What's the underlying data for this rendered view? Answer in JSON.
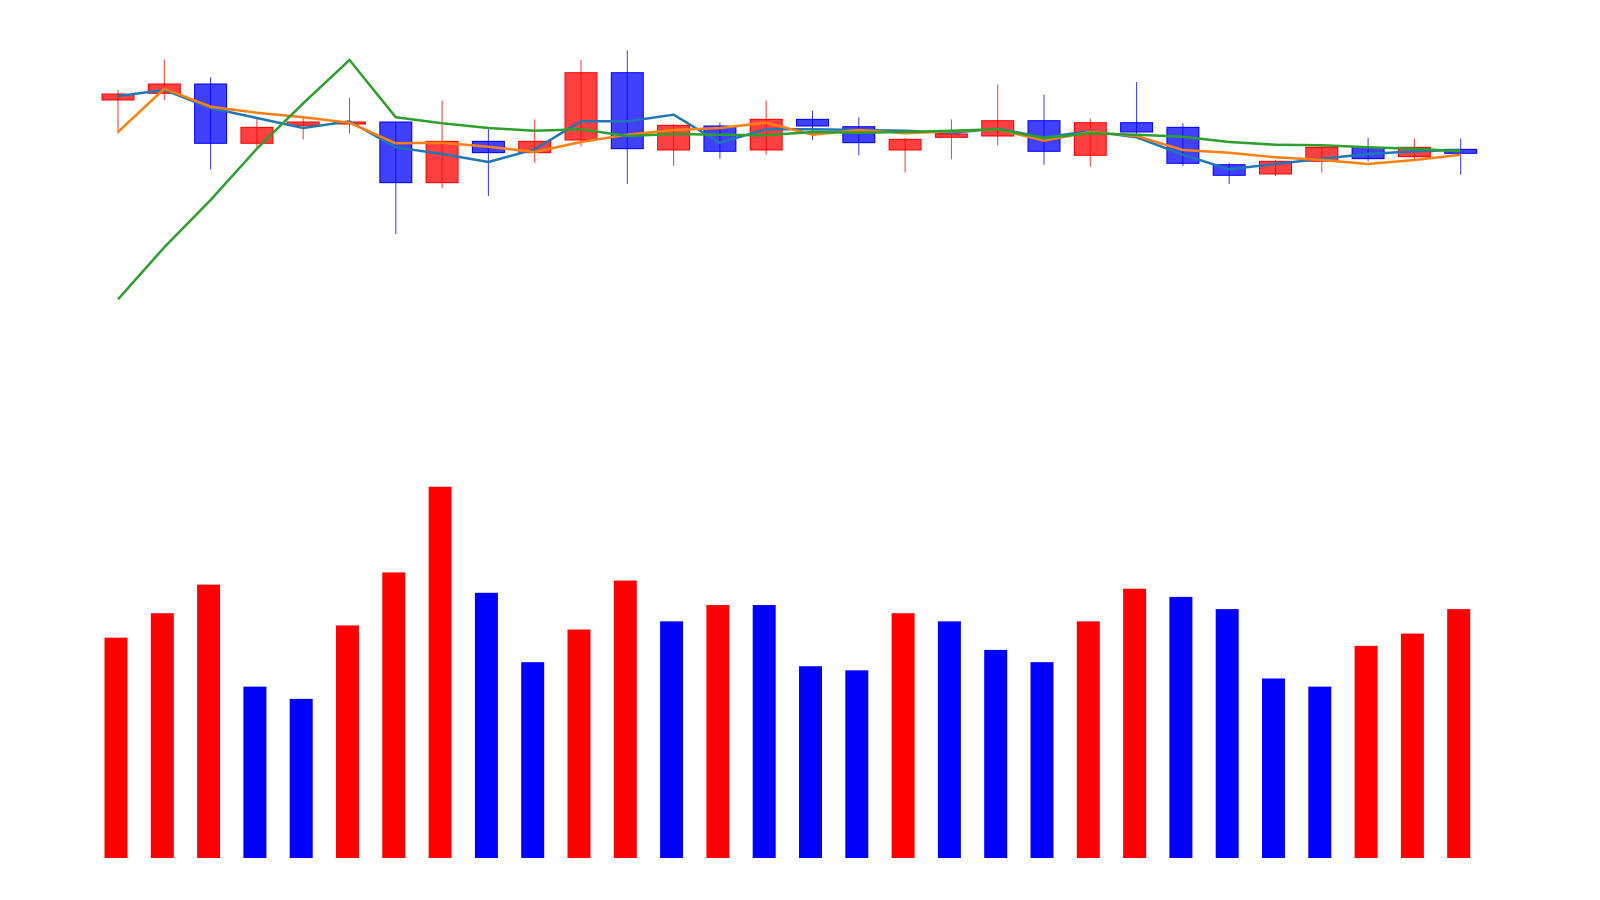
{
  "chart_data": [
    {
      "type": "candlestick",
      "title": "",
      "xlabel": "",
      "ylabel": "",
      "ylim": [
        0,
        72
      ],
      "grid": false,
      "legend": "none",
      "colors": {
        "up": "#ff0000",
        "down": "#0000ff",
        "line_a": "#1f77b4",
        "line_b": "#ff7f0e",
        "line_c": "#2ca02c"
      },
      "candles": [
        {
          "open": 60.0,
          "close": 60.9,
          "high": 61.5,
          "low": 55.0
        },
        {
          "open": 61.0,
          "close": 62.4,
          "high": 66.1,
          "low": 60.0
        },
        {
          "open": 62.4,
          "close": 53.5,
          "high": 63.4,
          "low": 49.6
        },
        {
          "open": 53.5,
          "close": 55.9,
          "high": 57.2,
          "low": 52.5
        },
        {
          "open": 56.2,
          "close": 56.7,
          "high": 57.4,
          "low": 54.1
        },
        {
          "open": 56.4,
          "close": 56.7,
          "high": 60.3,
          "low": 55.0
        },
        {
          "open": 56.7,
          "close": 47.6,
          "high": 56.7,
          "low": 39.9
        },
        {
          "open": 47.6,
          "close": 53.8,
          "high": 59.9,
          "low": 46.8
        },
        {
          "open": 53.8,
          "close": 52.1,
          "high": 55.6,
          "low": 45.6
        },
        {
          "open": 52.1,
          "close": 53.8,
          "high": 57.1,
          "low": 50.6
        },
        {
          "open": 54.0,
          "close": 64.1,
          "high": 66.0,
          "low": 53.1
        },
        {
          "open": 64.1,
          "close": 52.7,
          "high": 67.4,
          "low": 47.4
        },
        {
          "open": 52.5,
          "close": 56.2,
          "high": 56.4,
          "low": 50.1
        },
        {
          "open": 56.1,
          "close": 52.3,
          "high": 56.6,
          "low": 51.2
        },
        {
          "open": 52.5,
          "close": 57.1,
          "high": 59.9,
          "low": 51.8
        },
        {
          "open": 57.1,
          "close": 56.1,
          "high": 58.4,
          "low": 54.0
        },
        {
          "open": 56.0,
          "close": 53.6,
          "high": 57.4,
          "low": 51.7
        },
        {
          "open": 52.5,
          "close": 54.1,
          "high": 54.3,
          "low": 49.1
        },
        {
          "open": 54.4,
          "close": 54.9,
          "high": 57.1,
          "low": 51.1
        },
        {
          "open": 54.6,
          "close": 56.9,
          "high": 62.3,
          "low": 53.2
        },
        {
          "open": 56.9,
          "close": 52.3,
          "high": 60.8,
          "low": 50.3
        },
        {
          "open": 51.7,
          "close": 56.6,
          "high": 57.2,
          "low": 50.0
        },
        {
          "open": 56.6,
          "close": 55.2,
          "high": 62.7,
          "low": 54.3
        },
        {
          "open": 55.9,
          "close": 50.5,
          "high": 56.5,
          "low": 50.1
        },
        {
          "open": 50.3,
          "close": 48.7,
          "high": 50.6,
          "low": 47.4
        },
        {
          "open": 48.9,
          "close": 50.8,
          "high": 51.0,
          "low": 48.6
        },
        {
          "open": 50.8,
          "close": 52.9,
          "high": 53.0,
          "low": 49.1
        },
        {
          "open": 52.9,
          "close": 51.2,
          "high": 54.3,
          "low": 50.8
        },
        {
          "open": 51.5,
          "close": 52.9,
          "high": 54.2,
          "low": 50.9
        },
        {
          "open": 52.6,
          "close": 52.0,
          "high": 54.2,
          "low": 48.8
        }
      ],
      "series": [
        {
          "values": [
            60.6,
            61.5,
            58.8,
            57.3,
            55.8,
            56.8,
            52.9,
            51.9,
            50.7,
            52.6,
            56.8,
            56.8,
            57.8,
            53.6,
            55.6,
            55.6,
            55.5,
            55.4,
            55.1,
            55.7,
            54.4,
            55.3,
            54.4,
            51.8,
            49.6,
            50.4,
            51.2,
            51.9,
            52.3,
            52.5
          ]
        },
        {
          "values": [
            55.2,
            61.7,
            59.0,
            58.1,
            57.4,
            56.6,
            53.5,
            53.6,
            53.0,
            52.2,
            53.7,
            54.8,
            55.5,
            55.8,
            56.6,
            54.8,
            55.5,
            55.0,
            55.3,
            55.6,
            53.9,
            55.2,
            54.6,
            52.5,
            52.1,
            51.4,
            51.0,
            50.4,
            51.0,
            51.8
          ]
        },
        {
          "values": [
            30.1,
            37.9,
            45.0,
            52.7,
            59.5,
            66.0,
            57.4,
            56.5,
            55.8,
            55.4,
            55.6,
            54.6,
            54.9,
            54.8,
            54.7,
            55.2,
            55.1,
            55.2,
            55.4,
            55.6,
            54.3,
            55.0,
            54.8,
            54.5,
            53.7,
            53.3,
            53.2,
            52.9,
            52.7,
            52.3
          ]
        }
      ]
    },
    {
      "type": "bar",
      "title": "",
      "xlabel": "",
      "ylabel": "",
      "ylim": [
        0,
        100
      ],
      "grid": false,
      "legend": "none",
      "values": [
        54,
        60,
        67,
        42,
        39,
        57,
        70,
        91,
        65,
        48,
        56,
        68,
        58,
        62,
        62,
        47,
        46,
        60,
        58,
        51,
        48,
        58,
        66,
        64,
        61,
        44,
        42,
        52,
        55,
        61
      ],
      "directions": [
        "up",
        "up",
        "up",
        "down",
        "down",
        "up",
        "up",
        "up",
        "down",
        "down",
        "up",
        "up",
        "down",
        "up",
        "down",
        "down",
        "down",
        "up",
        "down",
        "down",
        "down",
        "up",
        "up",
        "down",
        "down",
        "down",
        "down",
        "up",
        "up",
        "up"
      ]
    }
  ]
}
